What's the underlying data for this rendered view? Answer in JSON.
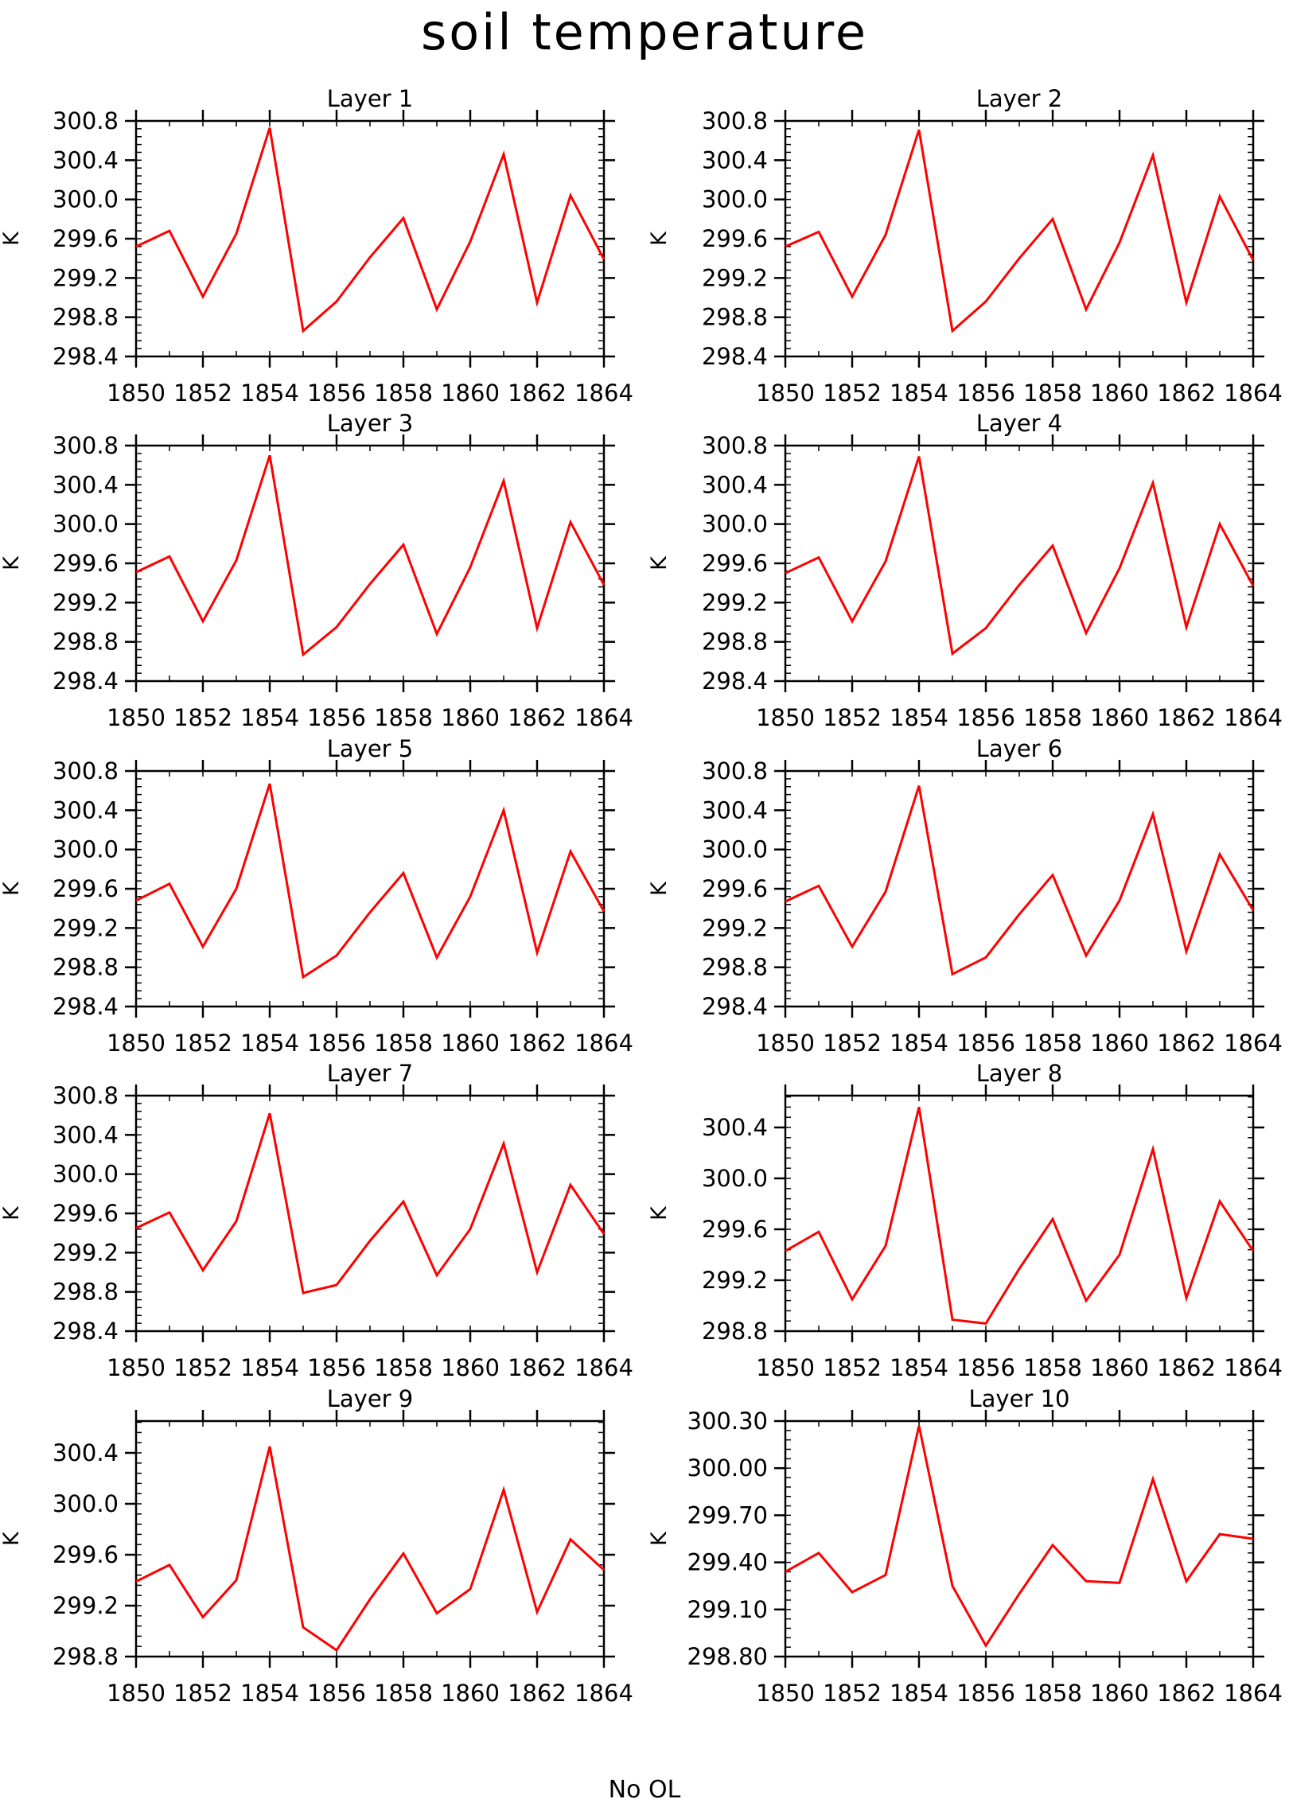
{
  "title": "soil temperature",
  "footer": "No OL",
  "colors": {
    "line": "#ff0000",
    "axis": "#000000",
    "background": "#ffffff"
  },
  "chart_data": [
    {
      "type": "line",
      "title": "Layer 1",
      "ylabel": "K",
      "x": [
        1850,
        1851,
        1852,
        1853,
        1854,
        1855,
        1856,
        1857,
        1858,
        1859,
        1860,
        1861,
        1862,
        1863,
        1864
      ],
      "xticks": [
        "1850",
        "1852",
        "1854",
        "1856",
        "1858",
        "1860",
        "1862",
        "1864"
      ],
      "xlim": [
        1850,
        1864
      ],
      "yticks": [
        "298.4",
        "298.8",
        "299.2",
        "299.6",
        "300.0",
        "300.4",
        "300.8"
      ],
      "ylim": [
        298.4,
        300.8
      ],
      "yminor": 0.08,
      "values": [
        299.52,
        299.68,
        299.01,
        299.65,
        300.73,
        298.66,
        298.96,
        299.41,
        299.81,
        298.88,
        299.57,
        300.46,
        298.95,
        300.04,
        299.39
      ]
    },
    {
      "type": "line",
      "title": "Layer 2",
      "ylabel": "K",
      "x": [
        1850,
        1851,
        1852,
        1853,
        1854,
        1855,
        1856,
        1857,
        1858,
        1859,
        1860,
        1861,
        1862,
        1863,
        1864
      ],
      "xticks": [
        "1850",
        "1852",
        "1854",
        "1856",
        "1858",
        "1860",
        "1862",
        "1864"
      ],
      "xlim": [
        1850,
        1864
      ],
      "yticks": [
        "298.4",
        "298.8",
        "299.2",
        "299.6",
        "300.0",
        "300.4",
        "300.8"
      ],
      "ylim": [
        298.4,
        300.8
      ],
      "yminor": 0.08,
      "values": [
        299.52,
        299.67,
        299.01,
        299.64,
        300.71,
        298.66,
        298.96,
        299.4,
        299.8,
        298.88,
        299.56,
        300.45,
        298.95,
        300.03,
        299.38
      ]
    },
    {
      "type": "line",
      "title": "Layer 3",
      "ylabel": "K",
      "x": [
        1850,
        1851,
        1852,
        1853,
        1854,
        1855,
        1856,
        1857,
        1858,
        1859,
        1860,
        1861,
        1862,
        1863,
        1864
      ],
      "xticks": [
        "1850",
        "1852",
        "1854",
        "1856",
        "1858",
        "1860",
        "1862",
        "1864"
      ],
      "xlim": [
        1850,
        1864
      ],
      "yticks": [
        "298.4",
        "298.8",
        "299.2",
        "299.6",
        "300.0",
        "300.4",
        "300.8"
      ],
      "ylim": [
        298.4,
        300.8
      ],
      "yminor": 0.08,
      "values": [
        299.51,
        299.67,
        299.01,
        299.63,
        300.7,
        298.67,
        298.95,
        299.39,
        299.79,
        298.88,
        299.56,
        300.44,
        298.94,
        300.02,
        299.38
      ]
    },
    {
      "type": "line",
      "title": "Layer 4",
      "ylabel": "K",
      "x": [
        1850,
        1851,
        1852,
        1853,
        1854,
        1855,
        1856,
        1857,
        1858,
        1859,
        1860,
        1861,
        1862,
        1863,
        1864
      ],
      "xticks": [
        "1850",
        "1852",
        "1854",
        "1856",
        "1858",
        "1860",
        "1862",
        "1864"
      ],
      "xlim": [
        1850,
        1864
      ],
      "yticks": [
        "298.4",
        "298.8",
        "299.2",
        "299.6",
        "300.0",
        "300.4",
        "300.8"
      ],
      "ylim": [
        298.4,
        300.8
      ],
      "yminor": 0.08,
      "values": [
        299.5,
        299.66,
        299.01,
        299.62,
        300.69,
        298.68,
        298.94,
        299.38,
        299.78,
        298.89,
        299.55,
        300.42,
        298.95,
        300.0,
        299.37
      ]
    },
    {
      "type": "line",
      "title": "Layer 5",
      "ylabel": "K",
      "x": [
        1850,
        1851,
        1852,
        1853,
        1854,
        1855,
        1856,
        1857,
        1858,
        1859,
        1860,
        1861,
        1862,
        1863,
        1864
      ],
      "xticks": [
        "1850",
        "1852",
        "1854",
        "1856",
        "1858",
        "1860",
        "1862",
        "1864"
      ],
      "xlim": [
        1850,
        1864
      ],
      "yticks": [
        "298.4",
        "298.8",
        "299.2",
        "299.6",
        "300.0",
        "300.4",
        "300.8"
      ],
      "ylim": [
        298.4,
        300.8
      ],
      "yminor": 0.08,
      "values": [
        299.48,
        299.65,
        299.01,
        299.6,
        300.67,
        298.7,
        298.92,
        299.36,
        299.76,
        298.9,
        299.52,
        300.4,
        298.95,
        299.98,
        299.37
      ]
    },
    {
      "type": "line",
      "title": "Layer 6",
      "ylabel": "K",
      "x": [
        1850,
        1851,
        1852,
        1853,
        1854,
        1855,
        1856,
        1857,
        1858,
        1859,
        1860,
        1861,
        1862,
        1863,
        1864
      ],
      "xticks": [
        "1850",
        "1852",
        "1854",
        "1856",
        "1858",
        "1860",
        "1862",
        "1864"
      ],
      "xlim": [
        1850,
        1864
      ],
      "yticks": [
        "298.4",
        "298.8",
        "299.2",
        "299.6",
        "300.0",
        "300.4",
        "300.8"
      ],
      "ylim": [
        298.4,
        300.8
      ],
      "yminor": 0.08,
      "values": [
        299.47,
        299.63,
        299.01,
        299.57,
        300.65,
        298.73,
        298.9,
        299.34,
        299.74,
        298.92,
        299.48,
        300.36,
        298.96,
        299.95,
        299.38
      ]
    },
    {
      "type": "line",
      "title": "Layer 7",
      "ylabel": "K",
      "x": [
        1850,
        1851,
        1852,
        1853,
        1854,
        1855,
        1856,
        1857,
        1858,
        1859,
        1860,
        1861,
        1862,
        1863,
        1864
      ],
      "xticks": [
        "1850",
        "1852",
        "1854",
        "1856",
        "1858",
        "1860",
        "1862",
        "1864"
      ],
      "xlim": [
        1850,
        1864
      ],
      "yticks": [
        "298.4",
        "298.8",
        "299.2",
        "299.6",
        "300.0",
        "300.4",
        "300.8"
      ],
      "ylim": [
        298.4,
        300.8
      ],
      "yminor": 0.08,
      "values": [
        299.45,
        299.61,
        299.02,
        299.52,
        300.62,
        298.79,
        298.87,
        299.32,
        299.72,
        298.97,
        299.44,
        300.31,
        299.0,
        299.89,
        299.39
      ]
    },
    {
      "type": "line",
      "title": "Layer 8",
      "ylabel": "K",
      "x": [
        1850,
        1851,
        1852,
        1853,
        1854,
        1855,
        1856,
        1857,
        1858,
        1859,
        1860,
        1861,
        1862,
        1863,
        1864
      ],
      "xticks": [
        "1850",
        "1852",
        "1854",
        "1856",
        "1858",
        "1860",
        "1862",
        "1864"
      ],
      "xlim": [
        1850,
        1864
      ],
      "yticks": [
        "298.8",
        "299.2",
        "299.6",
        "300.0",
        "300.4"
      ],
      "ylim": [
        298.8,
        300.65
      ],
      "yminor": 0.08,
      "values": [
        299.43,
        299.58,
        299.05,
        299.47,
        300.56,
        298.89,
        298.86,
        299.29,
        299.68,
        299.04,
        299.4,
        300.23,
        299.06,
        299.82,
        299.43
      ]
    },
    {
      "type": "line",
      "title": "Layer 9",
      "ylabel": "K",
      "x": [
        1850,
        1851,
        1852,
        1853,
        1854,
        1855,
        1856,
        1857,
        1858,
        1859,
        1860,
        1861,
        1862,
        1863,
        1864
      ],
      "xticks": [
        "1850",
        "1852",
        "1854",
        "1856",
        "1858",
        "1860",
        "1862",
        "1864"
      ],
      "xlim": [
        1850,
        1864
      ],
      "yticks": [
        "298.8",
        "299.2",
        "299.6",
        "300.0",
        "300.4"
      ],
      "ylim": [
        298.8,
        300.65
      ],
      "yminor": 0.08,
      "values": [
        299.39,
        299.52,
        299.11,
        299.4,
        300.45,
        299.03,
        298.85,
        299.25,
        299.61,
        299.14,
        299.33,
        300.11,
        299.15,
        299.72,
        299.48
      ]
    },
    {
      "type": "line",
      "title": "Layer 10",
      "ylabel": "K",
      "x": [
        1850,
        1851,
        1852,
        1853,
        1854,
        1855,
        1856,
        1857,
        1858,
        1859,
        1860,
        1861,
        1862,
        1863,
        1864
      ],
      "xticks": [
        "1850",
        "1852",
        "1854",
        "1856",
        "1858",
        "1860",
        "1862",
        "1864"
      ],
      "xlim": [
        1850,
        1864
      ],
      "yticks": [
        "298.80",
        "299.10",
        "299.40",
        "299.70",
        "300.00",
        "300.30"
      ],
      "ylim": [
        298.8,
        300.3
      ],
      "yminor": 0.06,
      "values": [
        299.34,
        299.46,
        299.21,
        299.32,
        300.27,
        299.25,
        298.87,
        299.2,
        299.51,
        299.28,
        299.27,
        299.93,
        299.28,
        299.58,
        299.55
      ]
    }
  ]
}
